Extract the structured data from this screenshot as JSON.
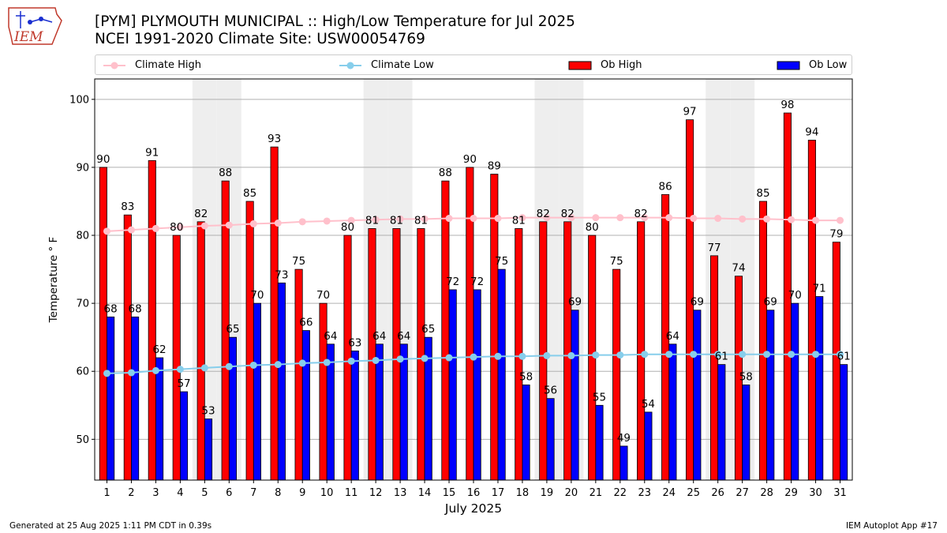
{
  "title_line1": "[PYM] PLYMOUTH MUNICIPAL :: High/Low Temperature for Jul 2025",
  "title_line2": "NCEI 1991-2020 Climate Site: USW00054769",
  "logo_text": "IEM",
  "footer_left": "Generated at 25 Aug 2025 1:11 PM CDT in 0.39s",
  "footer_right": "IEM Autoplot App #17",
  "colors": {
    "ob_high": "#ff0000",
    "ob_low": "#0000ff",
    "climate_high": "#ffc0cb",
    "climate_low": "#87ceeb",
    "weekend_band": "#eeeeee",
    "grid": "#b0b0b0",
    "logo": "#c0392b"
  },
  "chart_data": {
    "type": "bar",
    "xlabel": "July 2025",
    "ylabel": "Temperature ° F",
    "ylim": [
      44,
      103
    ],
    "yticks": [
      50,
      60,
      70,
      80,
      90,
      100
    ],
    "grid": "y",
    "legend_position": "top",
    "categories": [
      1,
      2,
      3,
      4,
      5,
      6,
      7,
      8,
      9,
      10,
      11,
      12,
      13,
      14,
      15,
      16,
      17,
      18,
      19,
      20,
      21,
      22,
      23,
      24,
      25,
      26,
      27,
      28,
      29,
      30,
      31
    ],
    "weekend_days": [
      5,
      6,
      12,
      13,
      19,
      20,
      26,
      27
    ],
    "series": [
      {
        "name": "Ob High",
        "kind": "bar",
        "values": [
          90,
          83,
          91,
          80,
          82,
          88,
          85,
          93,
          75,
          70,
          80,
          81,
          81,
          81,
          88,
          90,
          89,
          81,
          82,
          82,
          80,
          75,
          82,
          86,
          97,
          77,
          74,
          85,
          98,
          94,
          79
        ]
      },
      {
        "name": "Ob Low",
        "kind": "bar",
        "values": [
          68,
          68,
          62,
          57,
          53,
          65,
          70,
          73,
          66,
          64,
          63,
          64,
          64,
          65,
          72,
          72,
          75,
          58,
          56,
          69,
          55,
          49,
          54,
          64,
          69,
          61,
          58,
          69,
          70,
          71,
          61
        ]
      },
      {
        "name": "Climate High",
        "kind": "line",
        "values": [
          80.6,
          80.8,
          81.0,
          81.2,
          81.4,
          81.5,
          81.7,
          81.8,
          82.0,
          82.1,
          82.2,
          82.3,
          82.4,
          82.4,
          82.5,
          82.5,
          82.5,
          82.6,
          82.6,
          82.6,
          82.6,
          82.6,
          82.6,
          82.6,
          82.5,
          82.5,
          82.4,
          82.4,
          82.3,
          82.2,
          82.2
        ]
      },
      {
        "name": "Climate Low",
        "kind": "line",
        "values": [
          59.7,
          59.8,
          60.1,
          60.3,
          60.5,
          60.7,
          60.9,
          61.0,
          61.2,
          61.3,
          61.5,
          61.6,
          61.8,
          61.9,
          62.0,
          62.1,
          62.2,
          62.2,
          62.3,
          62.3,
          62.4,
          62.4,
          62.5,
          62.5,
          62.5,
          62.5,
          62.5,
          62.5,
          62.5,
          62.5,
          62.5
        ]
      }
    ]
  }
}
